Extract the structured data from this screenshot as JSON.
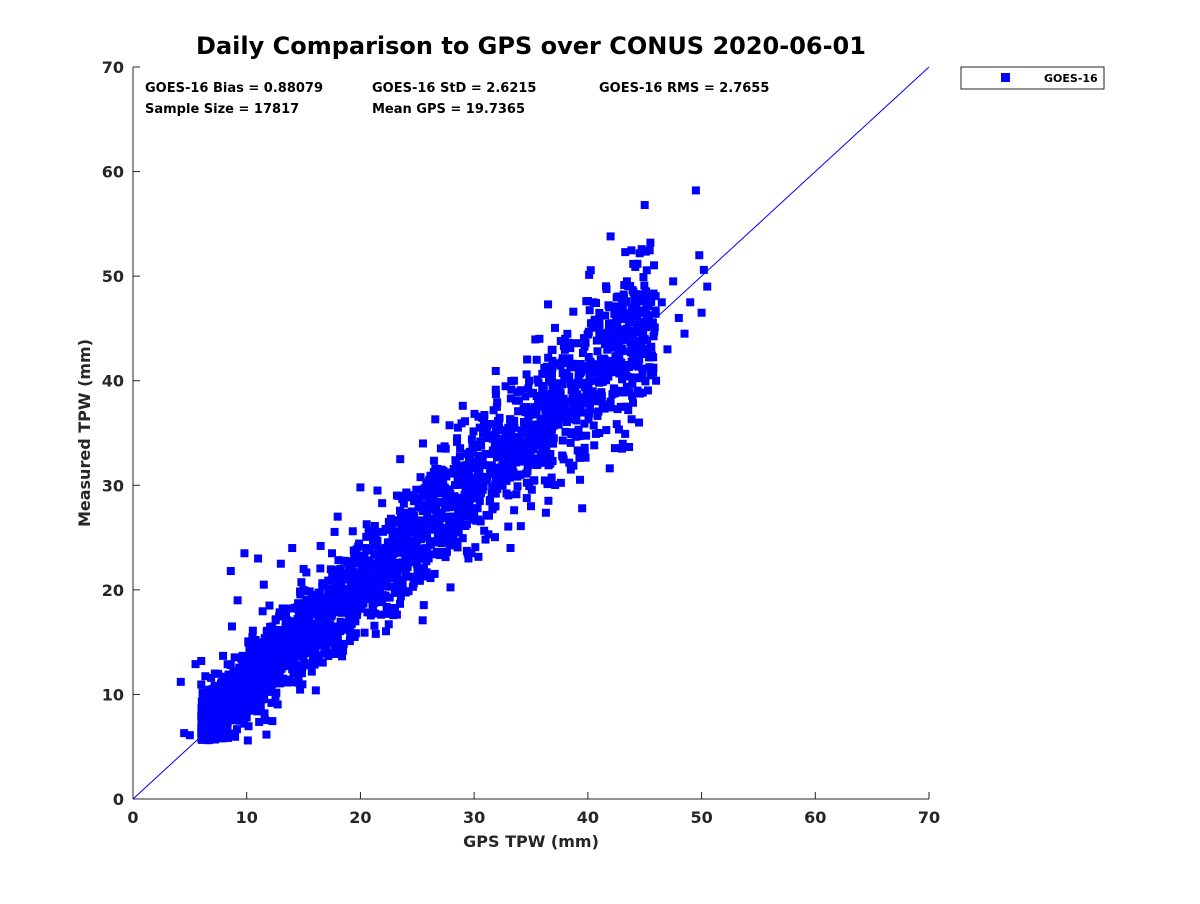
{
  "chart_data": {
    "type": "scatter",
    "title": "Daily Comparison to GPS over CONUS 2020-06-01",
    "xlabel": "GPS TPW (mm)",
    "ylabel": "Measured TPW (mm)",
    "xlim": [
      0,
      70
    ],
    "ylim": [
      0,
      70
    ],
    "xticks": [
      "0",
      "10",
      "20",
      "30",
      "40",
      "50",
      "60",
      "70"
    ],
    "yticks": [
      "0",
      "10",
      "20",
      "30",
      "40",
      "50",
      "60",
      "70"
    ],
    "grid": false,
    "legend_position": "top-right outside",
    "stats": [
      "GOES-16 Bias = 0.88079",
      "GOES-16 StD = 2.6215",
      "GOES-16 RMS = 2.7655",
      "Sample Size = 17817",
      "Mean GPS = 19.7365"
    ],
    "reference_line": {
      "x": [
        0,
        70
      ],
      "y": [
        0,
        70
      ],
      "color": "#0000ff"
    },
    "series": [
      {
        "name": "GOES-16",
        "color": "#0000ff",
        "marker": "square",
        "points": [
          [
            4.2,
            11.2
          ],
          [
            4.5,
            6.3
          ],
          [
            5.0,
            6.1
          ],
          [
            5.5,
            12.9
          ],
          [
            6.0,
            13.2
          ],
          [
            6.3,
            7.0
          ],
          [
            6.5,
            9.0
          ],
          [
            7.0,
            8.0
          ],
          [
            7.2,
            12.0
          ],
          [
            7.5,
            6.5
          ],
          [
            8.0,
            10.0
          ],
          [
            8.3,
            7.5
          ],
          [
            8.6,
            21.8
          ],
          [
            8.7,
            16.5
          ],
          [
            9.0,
            11.0
          ],
          [
            9.2,
            19.0
          ],
          [
            9.5,
            13.5
          ],
          [
            9.8,
            23.5
          ],
          [
            10.0,
            12.0
          ],
          [
            10.1,
            5.6
          ],
          [
            10.5,
            15.5
          ],
          [
            11.0,
            12.5
          ],
          [
            11.0,
            23.0
          ],
          [
            11.5,
            20.5
          ],
          [
            12.0,
            14.5
          ],
          [
            12.0,
            18.5
          ],
          [
            12.5,
            16.0
          ],
          [
            13.0,
            22.5
          ],
          [
            13.0,
            13.5
          ],
          [
            13.5,
            15.0
          ],
          [
            14.0,
            17.0
          ],
          [
            14.0,
            24.0
          ],
          [
            14.5,
            12.0
          ],
          [
            15.0,
            18.0
          ],
          [
            15.0,
            22.0
          ],
          [
            15.5,
            15.5
          ],
          [
            16.0,
            19.5
          ],
          [
            16.5,
            24.2
          ],
          [
            17.0,
            17.0
          ],
          [
            17.5,
            23.5
          ],
          [
            18.0,
            16.5
          ],
          [
            18.0,
            27.0
          ],
          [
            18.5,
            21.0
          ],
          [
            19.0,
            22.5
          ],
          [
            19.5,
            15.5
          ],
          [
            20.0,
            20.0
          ],
          [
            20.0,
            29.8
          ],
          [
            20.5,
            24.0
          ],
          [
            21.0,
            22.5
          ],
          [
            21.5,
            29.5
          ],
          [
            22.0,
            19.5
          ],
          [
            22.5,
            26.5
          ],
          [
            23.0,
            25.0
          ],
          [
            23.5,
            32.5
          ],
          [
            24.0,
            21.5
          ],
          [
            24.5,
            27.5
          ],
          [
            25.0,
            25.5
          ],
          [
            25.5,
            34.0
          ],
          [
            26.0,
            23.0
          ],
          [
            26.5,
            29.5
          ],
          [
            27.0,
            30.5
          ],
          [
            27.5,
            33.5
          ],
          [
            28.0,
            28.0
          ],
          [
            28.5,
            34.5
          ],
          [
            29.0,
            31.0
          ],
          [
            29.0,
            37.6
          ],
          [
            29.5,
            23.0
          ],
          [
            30.0,
            32.0
          ],
          [
            30.5,
            28.5
          ],
          [
            31.0,
            35.0
          ],
          [
            31.5,
            33.0
          ],
          [
            32.0,
            37.5
          ],
          [
            32.5,
            30.0
          ],
          [
            33.0,
            35.5
          ],
          [
            33.2,
            24.0
          ],
          [
            33.5,
            40.0
          ],
          [
            34.0,
            33.5
          ],
          [
            34.5,
            38.5
          ],
          [
            35.0,
            28.0
          ],
          [
            35.5,
            42.0
          ],
          [
            36.0,
            36.0
          ],
          [
            36.5,
            47.3
          ],
          [
            37.0,
            34.5
          ],
          [
            37.5,
            39.0
          ],
          [
            38.0,
            44.0
          ],
          [
            38.5,
            31.5
          ],
          [
            39.0,
            37.0
          ],
          [
            39.5,
            27.8
          ],
          [
            40.0,
            41.0
          ],
          [
            40.5,
            47.5
          ],
          [
            41.0,
            35.0
          ],
          [
            41.5,
            43.5
          ],
          [
            42.0,
            53.8
          ],
          [
            42.0,
            38.0
          ],
          [
            42.5,
            46.0
          ],
          [
            43.0,
            33.5
          ],
          [
            43.5,
            41.5
          ],
          [
            44.0,
            48.5
          ],
          [
            44.5,
            36.0
          ],
          [
            45.0,
            56.8
          ],
          [
            45.0,
            44.0
          ],
          [
            45.5,
            53.2
          ],
          [
            46.0,
            40.0
          ],
          [
            46.5,
            47.5
          ],
          [
            47.0,
            43.0
          ],
          [
            47.5,
            49.5
          ],
          [
            48.0,
            46.0
          ],
          [
            48.5,
            44.5
          ],
          [
            49.0,
            47.5
          ],
          [
            49.5,
            58.2
          ],
          [
            49.8,
            52.0
          ],
          [
            50.0,
            46.5
          ],
          [
            50.2,
            50.6
          ],
          [
            50.5,
            49.0
          ]
        ]
      }
    ]
  }
}
